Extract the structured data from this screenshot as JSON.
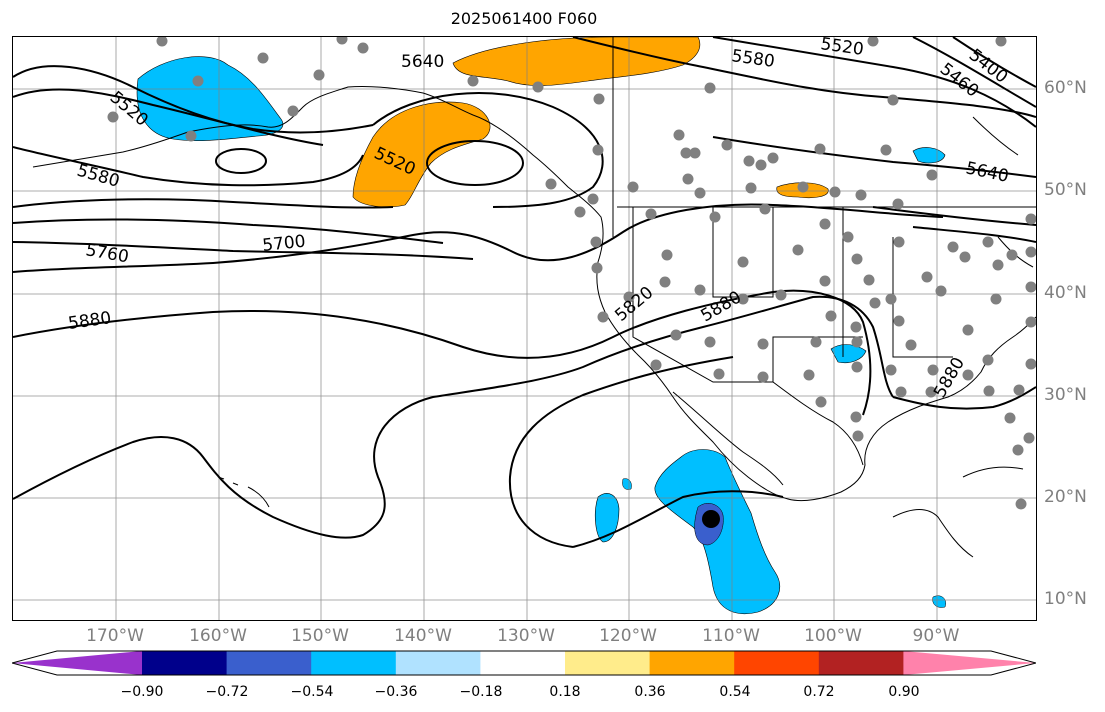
{
  "title": "2025061400 F060",
  "map": {
    "lon_labels": [
      "170°W",
      "160°W",
      "150°W",
      "140°W",
      "130°W",
      "120°W",
      "110°W",
      "100°W",
      "90°W"
    ],
    "lat_labels": [
      "60°N",
      "50°N",
      "40°N",
      "30°N",
      "20°N",
      "10°N"
    ],
    "contour_labels": [
      "5520",
      "5640",
      "5580",
      "5520",
      "5400",
      "5460",
      "5520",
      "5580",
      "5640",
      "5700",
      "5760",
      "5880",
      "5820",
      "5880",
      "5880"
    ],
    "colors": {
      "positive_anomaly": "#ffa500",
      "negative_anomaly": "#00bfff",
      "strong_negative": "#3a5fcd",
      "station": "#808080",
      "contour": "#000000",
      "grid": "#808080"
    },
    "storm_marker": "hurricane-center-dot"
  },
  "colorbar": {
    "ticks": [
      "−0.90",
      "−0.72",
      "−0.54",
      "−0.36",
      "−0.18",
      "0.18",
      "0.36",
      "0.54",
      "0.72",
      "0.90"
    ],
    "colors": [
      "#9932cc",
      "#00008b",
      "#3a5fcd",
      "#00bfff",
      "#b0e2ff",
      "#ffffff",
      "#ffec8b",
      "#ffa500",
      "#ff4500",
      "#b22222",
      "#ff82ab"
    ]
  }
}
